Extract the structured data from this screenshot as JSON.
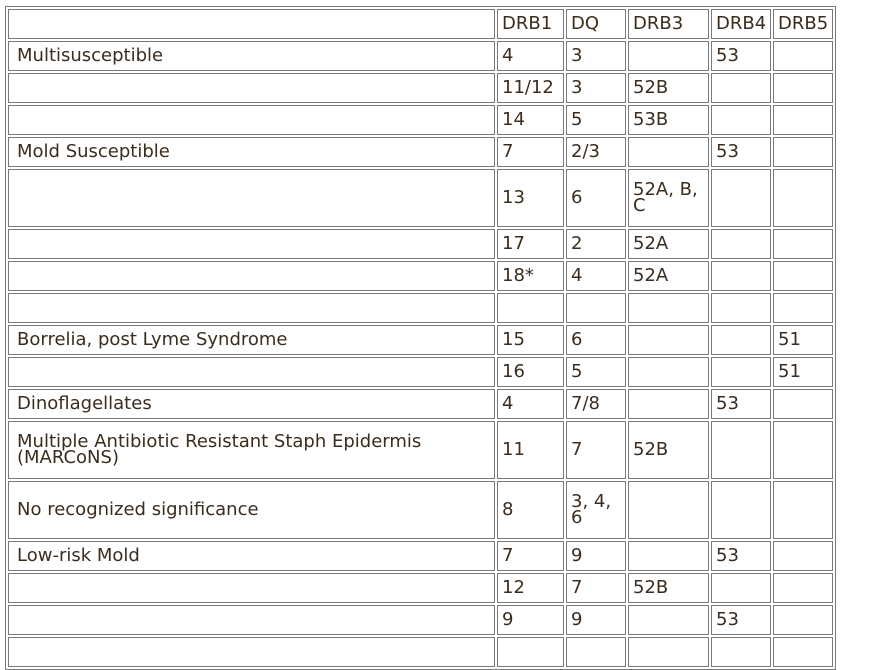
{
  "table": {
    "headers": [
      "",
      "DRB1",
      "DQ",
      "DRB3",
      "DRB4",
      "DRB5"
    ],
    "rows": [
      [
        "Multisusceptible",
        "4",
        "3",
        "",
        "53",
        ""
      ],
      [
        "",
        "11/12",
        "3",
        "52B",
        "",
        ""
      ],
      [
        "",
        "14",
        "5",
        "53B",
        "",
        ""
      ],
      [
        "Mold Susceptible",
        "7",
        "2/3",
        "",
        "53",
        ""
      ],
      [
        "",
        "13",
        "6",
        "52A, B, C",
        "",
        ""
      ],
      [
        "",
        "17",
        "2",
        "52A",
        "",
        ""
      ],
      [
        "",
        "18*",
        "4",
        "52A",
        "",
        ""
      ],
      [
        "",
        "",
        "",
        "",
        "",
        ""
      ],
      [
        "Borrelia, post Lyme Syndrome",
        "15",
        "6",
        "",
        "",
        "51"
      ],
      [
        "",
        "16",
        "5",
        "",
        "",
        "51"
      ],
      [
        "Dinoflagellates",
        "4",
        "7/8",
        "",
        "53",
        ""
      ],
      [
        "Multiple Antibiotic Resistant Staph Epidermis (MARCoNS)",
        "11",
        "7",
        "52B",
        "",
        ""
      ],
      [
        "No recognized significance",
        "8",
        "3, 4, 6",
        "",
        "",
        ""
      ],
      [
        "Low-risk Mold",
        "7",
        "9",
        "",
        "53",
        ""
      ],
      [
        "",
        "12",
        "7",
        "52B",
        "",
        ""
      ],
      [
        "",
        "9",
        "9",
        "",
        "53",
        ""
      ],
      [
        "",
        "",
        "",
        "",
        "",
        ""
      ]
    ]
  }
}
